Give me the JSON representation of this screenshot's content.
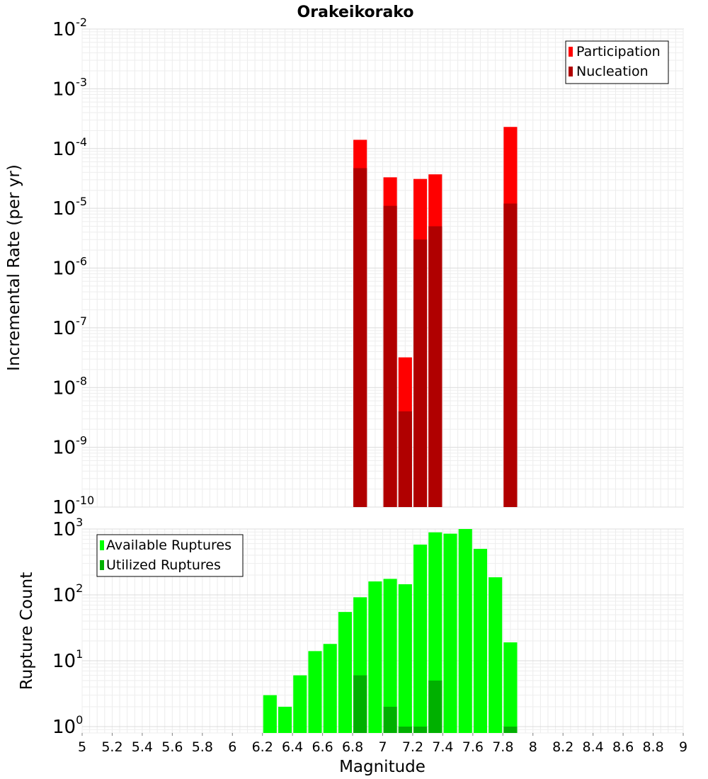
{
  "title": "Orakeikorako",
  "xlabel": "Magnitude",
  "x_ticks": [
    "5",
    "5.2",
    "5.4",
    "5.6",
    "5.8",
    "6",
    "6.2",
    "6.4",
    "6.6",
    "6.8",
    "7",
    "7.2",
    "7.4",
    "7.6",
    "7.8",
    "8",
    "8.2",
    "8.4",
    "8.6",
    "8.8",
    "9"
  ],
  "colors": {
    "participation": "#ff0000",
    "nucleation": "#b00000",
    "available": "#00ff00",
    "utilized": "#00b000"
  },
  "chart_data": [
    {
      "type": "bar",
      "ylabel": "Incremental Rate (per yr)",
      "yscale": "log",
      "xlim": [
        5,
        9
      ],
      "ylim": [
        1e-10,
        0.01
      ],
      "y_tick_exponents": [
        -2,
        -3,
        -4,
        -5,
        -6,
        -7,
        -8,
        -9,
        -10
      ],
      "grid": true,
      "legend_position": "top-right",
      "bar_width": 0.09,
      "series": [
        {
          "name": "Participation",
          "x": [
            6.85,
            7.05,
            7.15,
            7.25,
            7.35,
            7.85
          ],
          "values": [
            0.00014,
            3.3e-05,
            3.2e-08,
            3.1e-05,
            3.7e-05,
            0.00023
          ]
        },
        {
          "name": "Nucleation",
          "x": [
            6.85,
            7.05,
            7.15,
            7.25,
            7.35,
            7.85
          ],
          "values": [
            4.7e-05,
            1.1e-05,
            4e-09,
            3e-06,
            5e-06,
            1.2e-05
          ]
        }
      ]
    },
    {
      "type": "bar",
      "ylabel": "Rupture Count",
      "yscale": "log",
      "xlim": [
        5,
        9
      ],
      "ylim": [
        0.8,
        1000
      ],
      "y_tick_exponents": [
        3,
        2,
        1,
        0
      ],
      "grid": true,
      "legend_position": "top-left",
      "bar_width": 0.09,
      "series": [
        {
          "name": "Available Ruptures",
          "x": [
            6.25,
            6.35,
            6.45,
            6.55,
            6.65,
            6.75,
            6.85,
            6.95,
            7.05,
            7.15,
            7.25,
            7.35,
            7.45,
            7.55,
            7.65,
            7.75,
            7.85
          ],
          "values": [
            3,
            2,
            6,
            14,
            18,
            55,
            92,
            160,
            175,
            145,
            580,
            890,
            850,
            1000,
            500,
            185,
            19
          ]
        },
        {
          "name": "Utilized Ruptures",
          "x": [
            6.85,
            7.05,
            7.15,
            7.25,
            7.35,
            7.85
          ],
          "values": [
            6,
            2,
            1,
            1,
            5,
            1
          ]
        }
      ]
    }
  ]
}
